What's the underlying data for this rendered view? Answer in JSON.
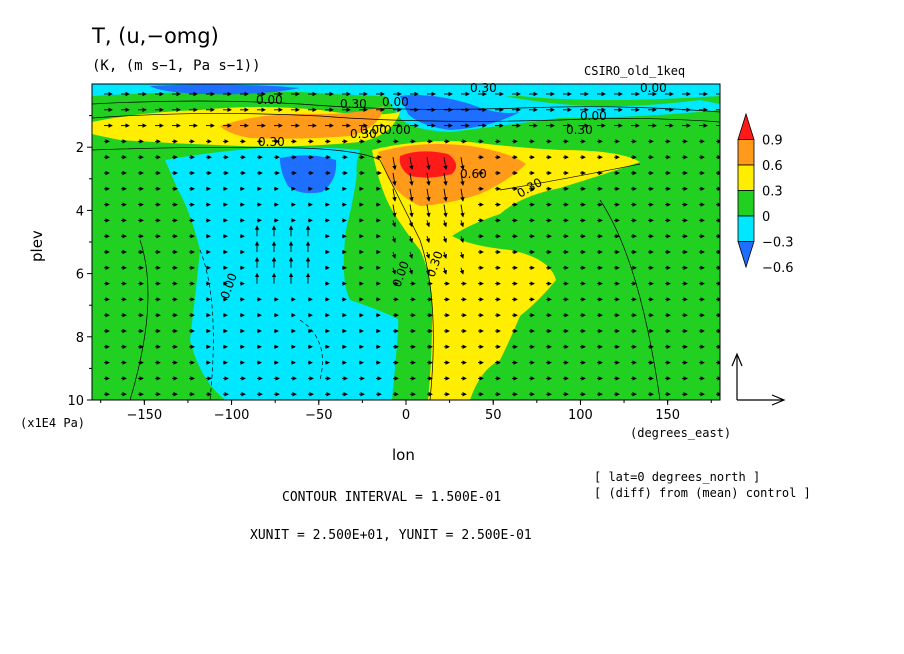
{
  "header": {
    "title": "T, (u,−omg)",
    "subtitle": "(K, (m s−1, Pa s−1))",
    "model": "CSIRO_old_1keq"
  },
  "chart_data": {
    "type": "contour",
    "xlabel": "lon",
    "ylabel": "plev",
    "x_unit_label": "(degrees_east)",
    "y_unit_label": "(x1E4 Pa)",
    "xlim": [
      -180,
      180
    ],
    "ylim": [
      10,
      0
    ],
    "x_ticks": [
      -150,
      -100,
      -50,
      0,
      50,
      100,
      150
    ],
    "x_tick_labels": [
      "−150",
      "−100",
      "−50",
      "0",
      "50",
      "100",
      "150"
    ],
    "y_ticks": [
      2,
      4,
      6,
      8,
      10
    ],
    "y_tick_labels": [
      "2",
      "4",
      "6",
      "8",
      "10"
    ],
    "colorbar": {
      "levels": [
        -0.6,
        -0.3,
        0,
        0.3,
        0.6,
        0.9
      ],
      "labels": [
        "−0.6",
        "−0.3",
        "0",
        "0.3",
        "0.6",
        "0.9"
      ],
      "colors": [
        "#1e6eff",
        "#00e8ff",
        "#22d022",
        "#ffee00",
        "#ff9a1a",
        "#ff1a1a"
      ]
    },
    "contour_labels": [
      "0.00",
      "0.30",
      "0.00",
      "0.30",
      "0.30",
      "0.00",
      "0.00",
      "0.30",
      "0.60",
      "0.30",
      "0.00",
      "0.00",
      "0.30",
      "0.00",
      "0.30",
      "0.00"
    ],
    "contour_interval": "CONTOUR INTERVAL = 1.500E-01",
    "units": "XUNIT = 2.500E+01, YUNIT = 2.500E-01",
    "notes": [
      "[ lat=0 degrees_north ]",
      "[ (diff) from (mean) control ]"
    ]
  },
  "colors": {
    "green": "#22d022",
    "cyan": "#00e8ff",
    "blue": "#1e6eff",
    "yellow": "#ffee00",
    "orange": "#ff9a1a",
    "red": "#ff1a1a"
  }
}
